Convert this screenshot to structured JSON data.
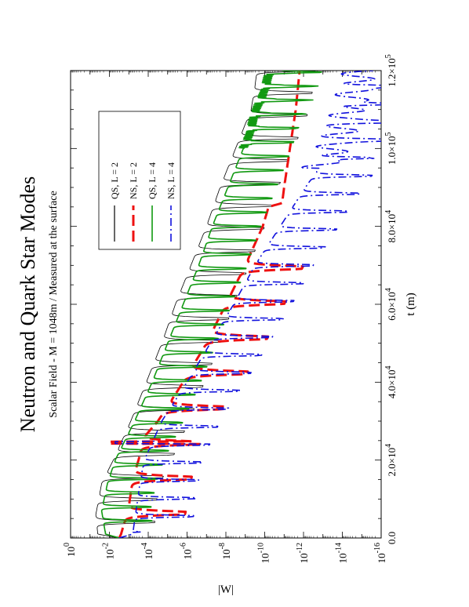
{
  "chart_data": {
    "type": "line",
    "orientation": "rotated-90-ccw",
    "title": "Neutron and Quark Star Modes",
    "subtitle": "Scalar Field - M = 1048m / Measured at the surface",
    "xlabel": "t (m)",
    "ylabel": "|W|",
    "xlim": [
      0,
      120000
    ],
    "ylim": [
      1e-16,
      1
    ],
    "yscale": "log",
    "x_ticks": [
      {
        "value": 0,
        "mantissa": "0.0",
        "exp": ""
      },
      {
        "value": 20000,
        "mantissa": "2.0×10",
        "exp": "4"
      },
      {
        "value": 40000,
        "mantissa": "4.0×10",
        "exp": "4"
      },
      {
        "value": 60000,
        "mantissa": "6.0×10",
        "exp": "4"
      },
      {
        "value": 80000,
        "mantissa": "8.0×10",
        "exp": "4"
      },
      {
        "value": 100000,
        "mantissa": "1.0×10",
        "exp": "5"
      },
      {
        "value": 120000,
        "mantissa": "1.2×10",
        "exp": "5"
      }
    ],
    "y_ticks": [
      {
        "value": 0,
        "base": "10",
        "exp": "0"
      },
      {
        "value": -2,
        "base": "10",
        "exp": "-2"
      },
      {
        "value": -4,
        "base": "10",
        "exp": "-4"
      },
      {
        "value": -6,
        "base": "10",
        "exp": "-6"
      },
      {
        "value": -8,
        "base": "10",
        "exp": "-8"
      },
      {
        "value": -10,
        "base": "10",
        "exp": "-10"
      },
      {
        "value": -12,
        "base": "10",
        "exp": "-12"
      },
      {
        "value": -14,
        "base": "10",
        "exp": "-14"
      },
      {
        "value": -16,
        "base": "10",
        "exp": "-16"
      }
    ],
    "legend_position": "top-left",
    "series": [
      {
        "name": "QS, L = 2",
        "color": "#000000",
        "style": "solid",
        "width": 0.8,
        "x": [
          0,
          1000,
          6000,
          14000,
          20000,
          30000,
          40000,
          50000,
          60000,
          70000,
          80000,
          90000,
          100000,
          110000,
          116000,
          120000
        ],
        "log10_envelope": [
          -2.5,
          -1.4,
          -1.3,
          -1.6,
          -2.2,
          -3.1,
          -3.9,
          -4.7,
          -5.4,
          -6.2,
          -7.0,
          -7.7,
          -8.5,
          -9.3,
          -9.5,
          -9.6
        ],
        "oscillation_period": 5800,
        "dip_depth": 3.0
      },
      {
        "name": "NS, L = 2",
        "color": "#ee1111",
        "style": "dashed",
        "width": 3,
        "x": [
          0,
          1000,
          8000,
          15000,
          20000,
          26000,
          30000,
          40000,
          50000,
          60000,
          70000,
          80000,
          85000,
          86000,
          90000,
          100000,
          110000,
          120000
        ],
        "log10_envelope": [
          -2.5,
          -2.6,
          -3.0,
          -3.2,
          -3.5,
          -3.8,
          -4.5,
          -5.8,
          -7.0,
          -8.0,
          -9.0,
          -9.9,
          -10.2,
          -10.9,
          -11.0,
          -11.3,
          -11.6,
          -11.8
        ],
        "oscillation_period": 9000,
        "dip_depth": 3.0,
        "dip_until": 72000,
        "spike": {
          "x": 24500,
          "log10": -2.0
        }
      },
      {
        "name": "QS, L = 4",
        "color": "#119911",
        "style": "solid",
        "width": 1.6,
        "x": [
          0,
          1000,
          7000,
          14000,
          20000,
          30000,
          40000,
          50000,
          60000,
          70000,
          80000,
          90000,
          100000,
          110000,
          116000,
          120000
        ],
        "log10_envelope": [
          -2.5,
          -1.8,
          -1.6,
          -1.9,
          -2.3,
          -3.3,
          -4.2,
          -5.0,
          -5.8,
          -6.6,
          -7.3,
          -8.1,
          -8.9,
          -9.6,
          -10.0,
          -10.3
        ],
        "oscillation_period": 3600,
        "dip_depth": 2.5
      },
      {
        "name": "NS, L = 4",
        "color": "#1111dd",
        "style": "dashdot",
        "width": 1.6,
        "x": [
          0,
          1000,
          8000,
          15000,
          20000,
          30000,
          40000,
          50000,
          60000,
          70000,
          80000,
          90000,
          100000,
          105000,
          110000,
          115000,
          120000
        ],
        "log10_envelope": [
          -2.5,
          -3.2,
          -3.4,
          -3.6,
          -3.8,
          -4.7,
          -6.0,
          -7.2,
          -8.4,
          -9.5,
          -10.8,
          -12.1,
          -13.5,
          -14.0,
          -14.3,
          -14.6,
          -14.9
        ],
        "oscillation_period": 4600,
        "dip_depth": 3.0,
        "spike": {
          "x": 24500,
          "log10": -2.3
        }
      }
    ]
  }
}
